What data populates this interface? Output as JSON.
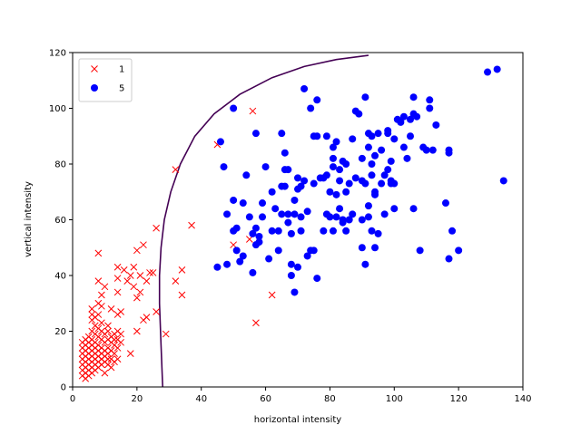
{
  "chart_data": {
    "type": "scatter",
    "title": "",
    "xlabel": "horizontal intensity",
    "ylabel": "vertical intensity",
    "xlim": [
      0,
      140
    ],
    "ylim": [
      0,
      120
    ],
    "xticks": [
      0,
      20,
      40,
      60,
      80,
      100,
      120,
      140
    ],
    "yticks": [
      0,
      20,
      40,
      60,
      80,
      100,
      120
    ],
    "grid": false,
    "legend_position": "top-left",
    "series": [
      {
        "name": "1",
        "marker": "x",
        "color": "#ff0000",
        "points": [
          [
            3,
            4
          ],
          [
            3,
            6
          ],
          [
            3,
            8
          ],
          [
            3,
            10
          ],
          [
            3,
            12
          ],
          [
            3,
            14
          ],
          [
            3,
            16
          ],
          [
            4,
            3
          ],
          [
            4,
            5
          ],
          [
            4,
            7
          ],
          [
            4,
            9
          ],
          [
            4,
            11
          ],
          [
            4,
            13
          ],
          [
            4,
            15
          ],
          [
            4,
            17
          ],
          [
            5,
            4
          ],
          [
            5,
            6
          ],
          [
            5,
            8
          ],
          [
            5,
            10
          ],
          [
            5,
            12
          ],
          [
            5,
            14
          ],
          [
            5,
            16
          ],
          [
            5,
            18
          ],
          [
            6,
            5
          ],
          [
            6,
            7
          ],
          [
            6,
            9
          ],
          [
            6,
            11
          ],
          [
            6,
            13
          ],
          [
            6,
            15
          ],
          [
            6,
            17
          ],
          [
            6,
            20
          ],
          [
            6,
            24
          ],
          [
            6,
            26
          ],
          [
            6,
            28
          ],
          [
            7,
            6
          ],
          [
            7,
            8
          ],
          [
            7,
            10
          ],
          [
            7,
            12
          ],
          [
            7,
            14
          ],
          [
            7,
            16
          ],
          [
            7,
            19
          ],
          [
            7,
            22
          ],
          [
            7,
            25
          ],
          [
            8,
            7
          ],
          [
            8,
            9
          ],
          [
            8,
            11
          ],
          [
            8,
            13
          ],
          [
            8,
            15
          ],
          [
            8,
            18
          ],
          [
            8,
            21
          ],
          [
            8,
            26
          ],
          [
            8,
            30
          ],
          [
            8,
            38
          ],
          [
            8,
            48
          ],
          [
            9,
            8
          ],
          [
            9,
            10
          ],
          [
            9,
            12
          ],
          [
            9,
            14
          ],
          [
            9,
            17
          ],
          [
            9,
            20
          ],
          [
            9,
            23
          ],
          [
            9,
            29
          ],
          [
            9,
            33
          ],
          [
            10,
            5
          ],
          [
            10,
            9
          ],
          [
            10,
            11
          ],
          [
            10,
            13
          ],
          [
            10,
            16
          ],
          [
            10,
            19
          ],
          [
            10,
            36
          ],
          [
            11,
            8
          ],
          [
            11,
            10
          ],
          [
            11,
            12
          ],
          [
            11,
            14
          ],
          [
            11,
            17
          ],
          [
            11,
            20
          ],
          [
            11,
            22
          ],
          [
            12,
            7
          ],
          [
            12,
            10
          ],
          [
            12,
            13
          ],
          [
            12,
            16
          ],
          [
            12,
            18
          ],
          [
            12,
            28
          ],
          [
            13,
            9
          ],
          [
            13,
            12
          ],
          [
            13,
            15
          ],
          [
            13,
            17
          ],
          [
            13,
            19
          ],
          [
            14,
            10
          ],
          [
            14,
            14
          ],
          [
            14,
            17
          ],
          [
            14,
            20
          ],
          [
            14,
            26
          ],
          [
            14,
            34
          ],
          [
            14,
            39
          ],
          [
            14,
            43
          ],
          [
            15,
            16
          ],
          [
            15,
            19
          ],
          [
            15,
            27
          ],
          [
            16,
            42
          ],
          [
            17,
            38
          ],
          [
            18,
            40
          ],
          [
            18,
            12
          ],
          [
            19,
            36
          ],
          [
            19,
            43
          ],
          [
            20,
            20
          ],
          [
            20,
            32
          ],
          [
            20,
            49
          ],
          [
            21,
            34
          ],
          [
            21,
            40
          ],
          [
            22,
            51
          ],
          [
            22,
            24
          ],
          [
            23,
            38
          ],
          [
            23,
            25
          ],
          [
            24,
            41
          ],
          [
            25,
            41
          ],
          [
            26,
            57
          ],
          [
            26,
            27
          ],
          [
            29,
            19
          ],
          [
            32,
            78
          ],
          [
            32,
            38
          ],
          [
            34,
            33
          ],
          [
            34,
            42
          ],
          [
            37,
            58
          ],
          [
            45,
            87
          ],
          [
            50,
            51
          ],
          [
            55,
            53
          ],
          [
            56,
            99
          ],
          [
            57,
            23
          ],
          [
            62,
            33
          ]
        ]
      },
      {
        "name": "5",
        "marker": "o",
        "color": "#0000ff",
        "points": [
          [
            45,
            43
          ],
          [
            46,
            88
          ],
          [
            47,
            79
          ],
          [
            48,
            44
          ],
          [
            48,
            62
          ],
          [
            50,
            100
          ],
          [
            50,
            67
          ],
          [
            50,
            56
          ],
          [
            51,
            57
          ],
          [
            51,
            49
          ],
          [
            52,
            45
          ],
          [
            53,
            47
          ],
          [
            53,
            66
          ],
          [
            54,
            76
          ],
          [
            55,
            61
          ],
          [
            56,
            55
          ],
          [
            56,
            41
          ],
          [
            57,
            91
          ],
          [
            57,
            51
          ],
          [
            57,
            57
          ],
          [
            58,
            52
          ],
          [
            58,
            54
          ],
          [
            59,
            66
          ],
          [
            59,
            61
          ],
          [
            60,
            79
          ],
          [
            61,
            46
          ],
          [
            62,
            56
          ],
          [
            62,
            70
          ],
          [
            63,
            64
          ],
          [
            64,
            56
          ],
          [
            64,
            49
          ],
          [
            65,
            91
          ],
          [
            65,
            72
          ],
          [
            65,
            62
          ],
          [
            66,
            84
          ],
          [
            66,
            78
          ],
          [
            66,
            72
          ],
          [
            67,
            78
          ],
          [
            67,
            62
          ],
          [
            67,
            59
          ],
          [
            68,
            55
          ],
          [
            68,
            40
          ],
          [
            68,
            44
          ],
          [
            69,
            34
          ],
          [
            69,
            62
          ],
          [
            69,
            67
          ],
          [
            70,
            75
          ],
          [
            70,
            43
          ],
          [
            70,
            71
          ],
          [
            71,
            72
          ],
          [
            71,
            56
          ],
          [
            71,
            61
          ],
          [
            72,
            107
          ],
          [
            72,
            74
          ],
          [
            73,
            47
          ],
          [
            73,
            63
          ],
          [
            74,
            49
          ],
          [
            74,
            100
          ],
          [
            75,
            49
          ],
          [
            75,
            73
          ],
          [
            75,
            90
          ],
          [
            76,
            103
          ],
          [
            76,
            39
          ],
          [
            76,
            90
          ],
          [
            77,
            75
          ],
          [
            78,
            75
          ],
          [
            78,
            56
          ],
          [
            79,
            76
          ],
          [
            79,
            62
          ],
          [
            79,
            90
          ],
          [
            80,
            61
          ],
          [
            80,
            70
          ],
          [
            81,
            82
          ],
          [
            81,
            86
          ],
          [
            81,
            79
          ],
          [
            81,
            56
          ],
          [
            82,
            69
          ],
          [
            82,
            61
          ],
          [
            82,
            88
          ],
          [
            83,
            78
          ],
          [
            83,
            74
          ],
          [
            83,
            64
          ],
          [
            84,
            81
          ],
          [
            84,
            59
          ],
          [
            84,
            60
          ],
          [
            85,
            80
          ],
          [
            85,
            70
          ],
          [
            85,
            56
          ],
          [
            86,
            60
          ],
          [
            86,
            73
          ],
          [
            87,
            89
          ],
          [
            87,
            62
          ],
          [
            88,
            99
          ],
          [
            88,
            75
          ],
          [
            89,
            98
          ],
          [
            90,
            74
          ],
          [
            90,
            82
          ],
          [
            90,
            50
          ],
          [
            90,
            60
          ],
          [
            91,
            44
          ],
          [
            91,
            104
          ],
          [
            91,
            73
          ],
          [
            92,
            65
          ],
          [
            92,
            91
          ],
          [
            92,
            86
          ],
          [
            92,
            61
          ],
          [
            93,
            80
          ],
          [
            93,
            56
          ],
          [
            93,
            76
          ],
          [
            93,
            90
          ],
          [
            94,
            83
          ],
          [
            94,
            50
          ],
          [
            94,
            69
          ],
          [
            94,
            70
          ],
          [
            95,
            91
          ],
          [
            95,
            55
          ],
          [
            96,
            73
          ],
          [
            96,
            85
          ],
          [
            97,
            76
          ],
          [
            97,
            62
          ],
          [
            98,
            92
          ],
          [
            98,
            91
          ],
          [
            98,
            78
          ],
          [
            99,
            74
          ],
          [
            99,
            81
          ],
          [
            99,
            73
          ],
          [
            100,
            64
          ],
          [
            100,
            89
          ],
          [
            100,
            73
          ],
          [
            101,
            96
          ],
          [
            102,
            95
          ],
          [
            103,
            97
          ],
          [
            103,
            86
          ],
          [
            104,
            82
          ],
          [
            105,
            96
          ],
          [
            105,
            90
          ],
          [
            106,
            104
          ],
          [
            106,
            64
          ],
          [
            106,
            98
          ],
          [
            107,
            97
          ],
          [
            108,
            49
          ],
          [
            109,
            86
          ],
          [
            110,
            85
          ],
          [
            111,
            103
          ],
          [
            111,
            100
          ],
          [
            112,
            85
          ],
          [
            113,
            94
          ],
          [
            116,
            66
          ],
          [
            117,
            85
          ],
          [
            117,
            46
          ],
          [
            117,
            84
          ],
          [
            118,
            56
          ],
          [
            120,
            49
          ],
          [
            129,
            113
          ],
          [
            132,
            114
          ],
          [
            134,
            74
          ]
        ]
      }
    ],
    "decision_boundary": {
      "color": "#440154",
      "points": [
        [
          28,
          0
        ],
        [
          27.5,
          15
        ],
        [
          27,
          30
        ],
        [
          27,
          40
        ],
        [
          27.5,
          50
        ],
        [
          28.5,
          60
        ],
        [
          30.5,
          70
        ],
        [
          33.5,
          80
        ],
        [
          38,
          90
        ],
        [
          44,
          98
        ],
        [
          52,
          105
        ],
        [
          62,
          111
        ],
        [
          72,
          115
        ],
        [
          82,
          117.5
        ],
        [
          92,
          119
        ]
      ]
    }
  }
}
